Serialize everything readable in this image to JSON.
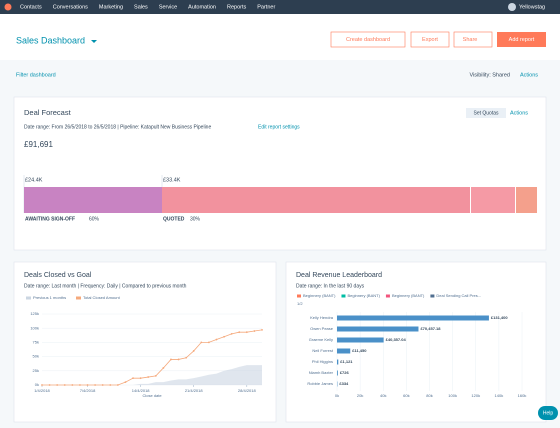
{
  "nav": {
    "items": [
      "Contacts",
      "Conversations",
      "Marketing",
      "Sales",
      "Service",
      "Automation",
      "Reports",
      "Partner"
    ],
    "user": "Yellowstag"
  },
  "header": {
    "title": "Sales Dashboard",
    "create": "Create dashboard",
    "export": "Export",
    "share": "Share",
    "add": "Add report"
  },
  "toolbar": {
    "filter": "Filter dashboard",
    "visibility": "Visibility: Shared",
    "actions": "Actions"
  },
  "forecast": {
    "title": "Deal Forecast",
    "set_quotas": "Set Quotas",
    "actions": "Actions",
    "date_range": "Date range: From 26/5/2018 to 26/5/2018 | Pipeline: Katapult New Business Pipeline",
    "edit": "Edit report settings",
    "total": "£91,691",
    "segments": [
      {
        "amount": "£24.4K",
        "name": "AWAITING SIGN-OFF",
        "pct": "60%"
      },
      {
        "amount": "£33.4K",
        "name": "QUOTED",
        "pct": "30%"
      }
    ]
  },
  "closed": {
    "title": "Deals Closed vs Goal",
    "subtitle": "Date range: Last month | Frequency: Daily | Compared to previous month",
    "chart_data": {
      "type": "line",
      "x_label": "Close date",
      "xlim": [
        1,
        30
      ],
      "ylim": [
        0,
        125000
      ],
      "xticks": [
        {
          "value": 1,
          "label": "1/4/2018"
        },
        {
          "value": 7,
          "label": "7/4/2018"
        },
        {
          "value": 14,
          "label": "14/4/2018"
        },
        {
          "value": 21,
          "label": "21/4/2018"
        },
        {
          "value": 28,
          "label": "28/4/2018"
        }
      ],
      "yticks": [
        {
          "value": 0,
          "label": "0k"
        },
        {
          "value": 25000,
          "label": "25k"
        },
        {
          "value": 50000,
          "label": "50k"
        },
        {
          "value": 75000,
          "label": "75k"
        },
        {
          "value": 100000,
          "label": "100k"
        },
        {
          "value": 125000,
          "label": "125k"
        }
      ],
      "x": [
        1,
        2,
        3,
        4,
        5,
        6,
        7,
        8,
        9,
        10,
        11,
        12,
        13,
        14,
        15,
        16,
        17,
        18,
        19,
        20,
        21,
        22,
        23,
        24,
        25,
        26,
        27,
        28,
        29,
        30
      ],
      "series": [
        {
          "name": "Previous 1 months",
          "color": "#cbd6e2",
          "area": true,
          "values": [
            0,
            0,
            0,
            0,
            0,
            0,
            0,
            0,
            0,
            0,
            0,
            0,
            0,
            2000,
            2000,
            5000,
            5000,
            8000,
            10000,
            10000,
            12000,
            15000,
            18000,
            20000,
            25000,
            28000,
            32000,
            35000,
            35000,
            35000
          ]
        },
        {
          "name": "Total Closed Amount",
          "color": "#f5a97c",
          "area": false,
          "values": [
            0,
            0,
            0,
            0,
            0,
            0,
            0,
            0,
            0,
            0,
            0,
            5000,
            12000,
            12000,
            14000,
            16000,
            30000,
            45000,
            45000,
            48000,
            60000,
            75000,
            75000,
            80000,
            85000,
            90000,
            93000,
            93000,
            95000,
            97000
          ]
        }
      ]
    }
  },
  "leaderboard": {
    "title": "Deal Revenue Leaderboard",
    "subtitle": "Date range: In the last 90 days",
    "legend": [
      "Beginnery (BANT)",
      "Beginnery (BANT)",
      "Beginnery (BANT)",
      "Deal Sending Call Pres..."
    ],
    "page": "1/2",
    "chart_data": {
      "type": "hbar",
      "color": "#4a90c8",
      "categories": [
        "Kelly Hendra",
        "Owen Pease",
        "Graeme Kelly",
        "Neil Forrest",
        "Phil Higgins",
        "Niamh Baxter",
        "Robbie James"
      ],
      "values": [
        131400,
        70457.18,
        40357.04,
        11450,
        1121,
        726,
        334
      ],
      "value_labels": [
        "£131,400",
        "£70,457.18",
        "£40,357.04",
        "£11,450",
        "£1,121",
        "£726",
        "£334"
      ],
      "xlim": [
        0,
        160000
      ],
      "xticks": [
        {
          "value": 0,
          "label": "0k"
        },
        {
          "value": 20000,
          "label": "20k"
        },
        {
          "value": 40000,
          "label": "40k"
        },
        {
          "value": 60000,
          "label": "60k"
        },
        {
          "value": 80000,
          "label": "80k"
        },
        {
          "value": 100000,
          "label": "100k"
        },
        {
          "value": 120000,
          "label": "120k"
        },
        {
          "value": 140000,
          "label": "140k"
        },
        {
          "value": 160000,
          "label": "160k"
        }
      ]
    }
  },
  "help": "Help"
}
